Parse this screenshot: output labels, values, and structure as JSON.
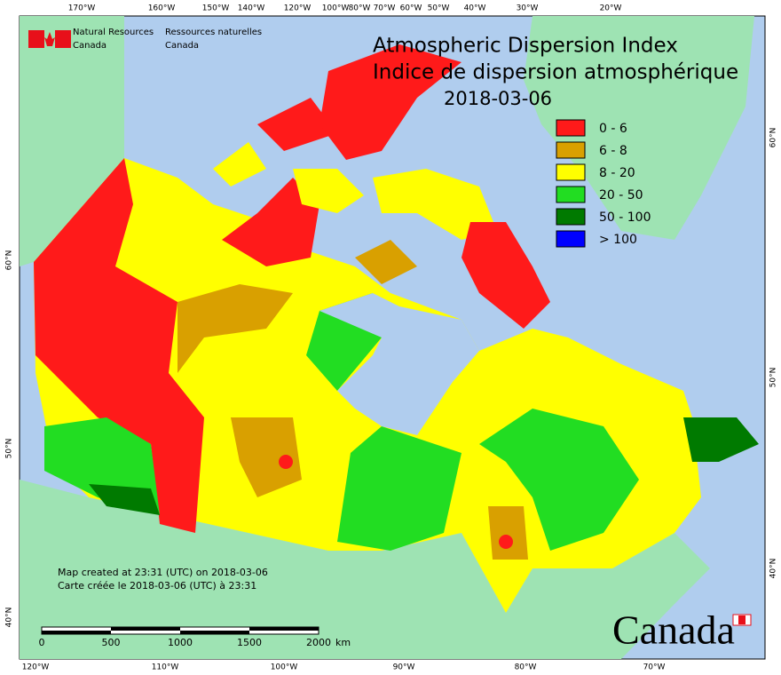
{
  "header": {
    "title_en": "Atmospheric Dispersion Index",
    "title_fr": "Indice de dispersion atmosphérique",
    "date": "2018-03-06"
  },
  "agency": {
    "en_1": "Natural Resources",
    "en_2": "Canada",
    "fr_1": "Ressources naturelles",
    "fr_2": "Canada"
  },
  "legend": [
    {
      "label": "0 - 6",
      "color": "#ff1a1a"
    },
    {
      "label": "6 - 8",
      "color": "#d9a000"
    },
    {
      "label": "8 - 20",
      "color": "#ffff00"
    },
    {
      "label": "20 - 50",
      "color": "#22dd22"
    },
    {
      "label": "50 - 100",
      "color": "#007a00"
    },
    {
      "label": "> 100",
      "color": "#0000ff"
    }
  ],
  "graticule": {
    "top": [
      "170°W",
      "160°W",
      "150°W",
      "140°W",
      "120°W",
      "100°W",
      "80°W",
      "70°W",
      "60°W",
      "50°W",
      "40°W",
      "30°W",
      "20°W"
    ],
    "bottom": [
      "120°W",
      "110°W",
      "100°W",
      "90°W",
      "80°W",
      "70°W"
    ],
    "left": [
      "60°N",
      "50°N",
      "40°N"
    ],
    "right": [
      "60°N",
      "50°N",
      "40°N"
    ]
  },
  "footnote": {
    "en": "Map created at 23:31 (UTC) on 2018-03-06",
    "fr": "Carte créée le 2018-03-06 (UTC) à 23:31"
  },
  "scale_bar": {
    "ticks": [
      "0",
      "500",
      "1000",
      "1500",
      "2000"
    ],
    "unit": "km"
  },
  "wordmark": "Canada"
}
